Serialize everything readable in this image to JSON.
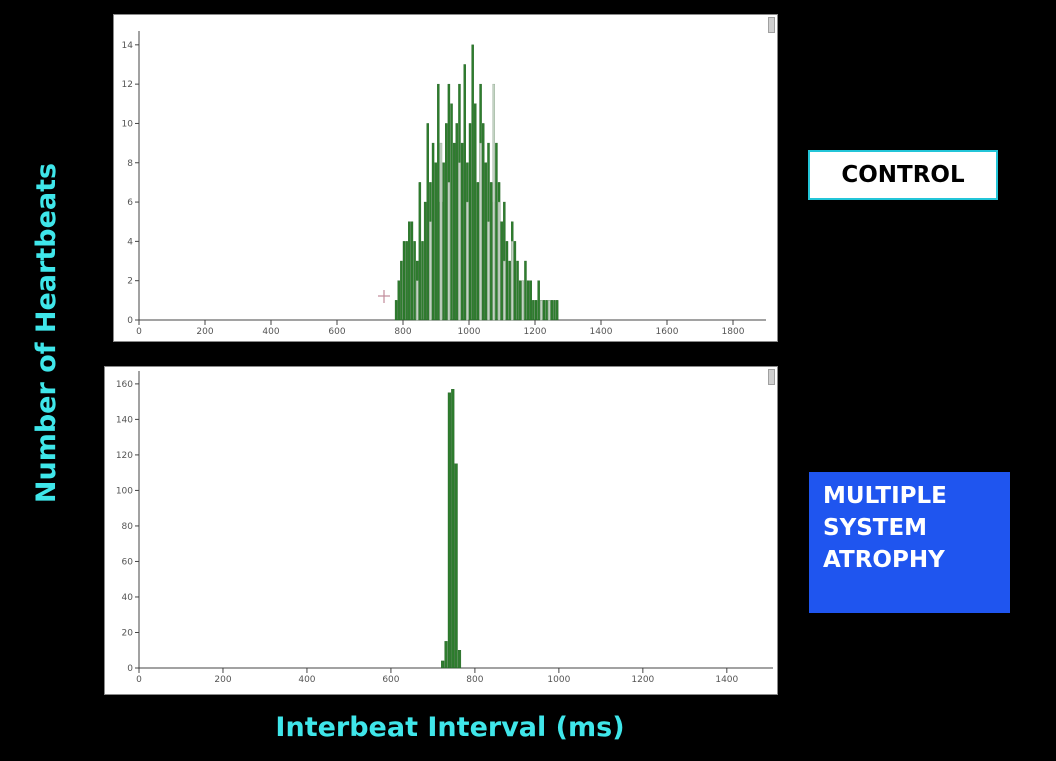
{
  "labels": {
    "y_axis": "Number of Heartbeats",
    "x_axis": "Interbeat Interval (ms)",
    "control": "CONTROL",
    "msa_lines": [
      "MULTIPLE",
      "SYSTEM",
      "ATROPHY"
    ]
  },
  "colors": {
    "background": "#000000",
    "label_cyan": "#3fe6ea",
    "bar_dark": "#2e7d2e",
    "bar_light": "#b9ccb9",
    "msa_box": "#1f55ef"
  },
  "chart_data": [
    {
      "type": "bar",
      "title": "CONTROL",
      "xlabel": "Interbeat Interval (ms)",
      "ylabel": "Number of Heartbeats",
      "xlim": [
        0,
        1900
      ],
      "ylim": [
        0,
        14.5
      ],
      "x_ticks": [
        0,
        200,
        400,
        600,
        800,
        1000,
        1200,
        1400,
        1600,
        1800
      ],
      "y_ticks": [
        0,
        2,
        4,
        6,
        8,
        10,
        12,
        14
      ],
      "bin_width": 8,
      "series": [
        {
          "x": [
            776,
            784,
            792,
            800,
            808,
            816,
            824,
            832,
            840,
            848,
            856,
            864,
            872,
            880,
            888,
            896,
            904,
            912,
            920,
            928,
            936,
            944,
            952,
            960,
            968,
            976,
            984,
            992,
            1000,
            1008,
            1016,
            1024,
            1032,
            1040,
            1048,
            1056,
            1064,
            1072,
            1080,
            1088,
            1096,
            1104,
            1112,
            1120,
            1128,
            1136,
            1144,
            1152,
            1160,
            1168,
            1176,
            1184,
            1192,
            1200,
            1208,
            1216,
            1224,
            1232,
            1240,
            1248,
            1256,
            1264
          ],
          "values": [
            1,
            2,
            3,
            4,
            4,
            5,
            5,
            4,
            3,
            7,
            4,
            6,
            10,
            7,
            9,
            8,
            12,
            6,
            8,
            10,
            12,
            11,
            9,
            10,
            12,
            9,
            13,
            8,
            10,
            14,
            11,
            7,
            12,
            10,
            8,
            9,
            7,
            6,
            9,
            7,
            5,
            6,
            4,
            3,
            5,
            4,
            3,
            2,
            2,
            3,
            2,
            2,
            1,
            1,
            2,
            1,
            1,
            1,
            1,
            1,
            1,
            1
          ]
        },
        {
          "x": [
            840,
            880,
            912,
            936,
            968,
            992,
            1032,
            1056,
            1072,
            1088,
            1104,
            1128,
            1160,
            1216,
            1240
          ],
          "values": [
            2,
            5,
            9,
            7,
            8,
            6,
            9,
            5,
            12,
            6,
            3,
            4,
            2,
            1,
            1
          ],
          "style": "light"
        }
      ]
    },
    {
      "type": "bar",
      "title": "MULTIPLE SYSTEM ATROPHY",
      "xlabel": "Interbeat Interval (ms)",
      "ylabel": "Number of Heartbeats",
      "xlim": [
        0,
        1510
      ],
      "ylim": [
        0,
        165
      ],
      "x_ticks": [
        0,
        200,
        400,
        600,
        800,
        1000,
        1200,
        1400
      ],
      "y_ticks": [
        0,
        20,
        40,
        60,
        80,
        100,
        120,
        140,
        160
      ],
      "bin_width": 8,
      "series": [
        {
          "x": [
            720,
            728,
            736,
            744,
            752,
            760
          ],
          "values": [
            4,
            15,
            155,
            157,
            115,
            10
          ]
        }
      ]
    }
  ]
}
